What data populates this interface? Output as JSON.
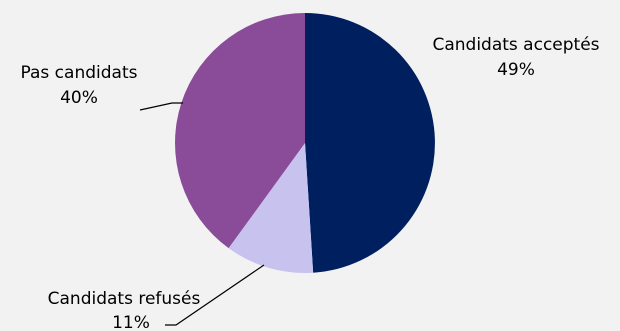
{
  "chart_data": {
    "type": "pie",
    "slices": [
      {
        "label": "Candidats acceptés",
        "value": 49,
        "pct_label": "49%",
        "color": "#001f5f"
      },
      {
        "label": "Candidats refusés",
        "value": 11,
        "pct_label": "11%",
        "color": "#c7c3ee"
      },
      {
        "label": "Pas candidats",
        "value": 40,
        "pct_label": "40%",
        "color": "#8a4c99"
      }
    ],
    "start_angle_deg": 0,
    "direction": "clockwise",
    "legend": "none",
    "data_labels": "outside with leader lines"
  }
}
